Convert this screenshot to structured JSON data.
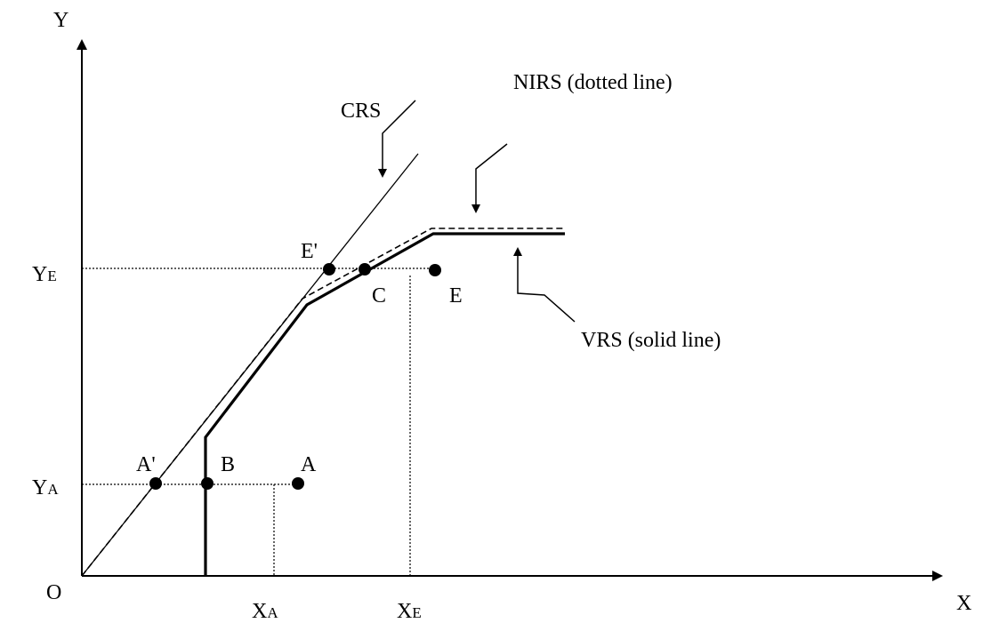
{
  "axes": {
    "y": "Y",
    "x": "X",
    "origin": "O"
  },
  "frontiers": {
    "crs": "CRS",
    "nirs": "NIRS (dotted line)",
    "vrs": "VRS (solid line)"
  },
  "points": {
    "e_prime": "E'",
    "c": "C",
    "e": "E",
    "a_prime": "A'",
    "b": "B",
    "a": "A"
  },
  "levels": {
    "y_e": {
      "main": "Y",
      "sub": "E"
    },
    "y_a": {
      "main": "Y",
      "sub": "A"
    },
    "x_a": {
      "main": "X",
      "sub": "A"
    },
    "x_e": {
      "main": "X",
      "sub": "E"
    }
  }
}
